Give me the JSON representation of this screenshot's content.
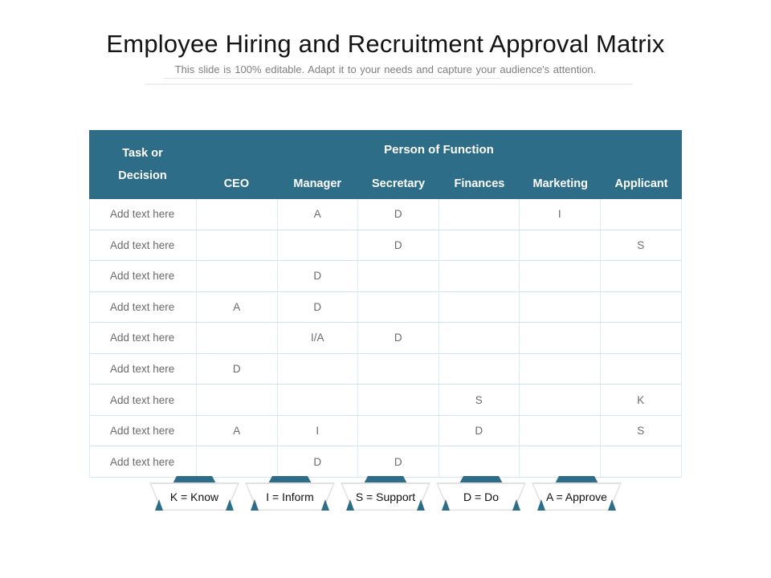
{
  "slide": {
    "title": "Employee Hiring and Recruitment Approval Matrix",
    "subtitle": "This slide is 100% editable. Adapt it to your needs and capture your audience's attention."
  },
  "colors": {
    "teal_accent": "#2e6d88",
    "grid_border": "#cfe4ec",
    "cell_text_gray": "#6b6b6b",
    "title_black": "#141414",
    "subtitle_gray": "#7f7f7f"
  },
  "matrix": {
    "corner_header": "Task or Decision",
    "group_header": "Person of Function",
    "columns": [
      "CEO",
      "Manager",
      "Secretary",
      "Finances",
      "Marketing",
      "Applicant"
    ],
    "rows": [
      {
        "label": "Add text here",
        "cells": [
          "",
          "A",
          "D",
          "",
          "I",
          ""
        ]
      },
      {
        "label": "Add text here",
        "cells": [
          "",
          "",
          "D",
          "",
          "",
          "S"
        ]
      },
      {
        "label": "Add text here",
        "cells": [
          "",
          "D",
          "",
          "",
          "",
          ""
        ]
      },
      {
        "label": "Add text here",
        "cells": [
          "A",
          "D",
          "",
          "",
          "",
          ""
        ]
      },
      {
        "label": "Add text here",
        "cells": [
          "",
          "I/A",
          "D",
          "",
          "",
          ""
        ]
      },
      {
        "label": "Add text here",
        "cells": [
          "D",
          "",
          "",
          "",
          "",
          ""
        ]
      },
      {
        "label": "Add text here",
        "cells": [
          "",
          "",
          "",
          "S",
          "",
          "K"
        ]
      },
      {
        "label": "Add text here",
        "cells": [
          "A",
          "I",
          "",
          "D",
          "",
          "S"
        ]
      },
      {
        "label": "Add text here",
        "cells": [
          "",
          "D",
          "D",
          "",
          "",
          ""
        ]
      }
    ]
  },
  "legend": {
    "items": [
      {
        "label": "K = Know"
      },
      {
        "label": "I = Inform"
      },
      {
        "label": "S = Support"
      },
      {
        "label": "D = Do"
      },
      {
        "label": "A = Approve"
      }
    ]
  }
}
